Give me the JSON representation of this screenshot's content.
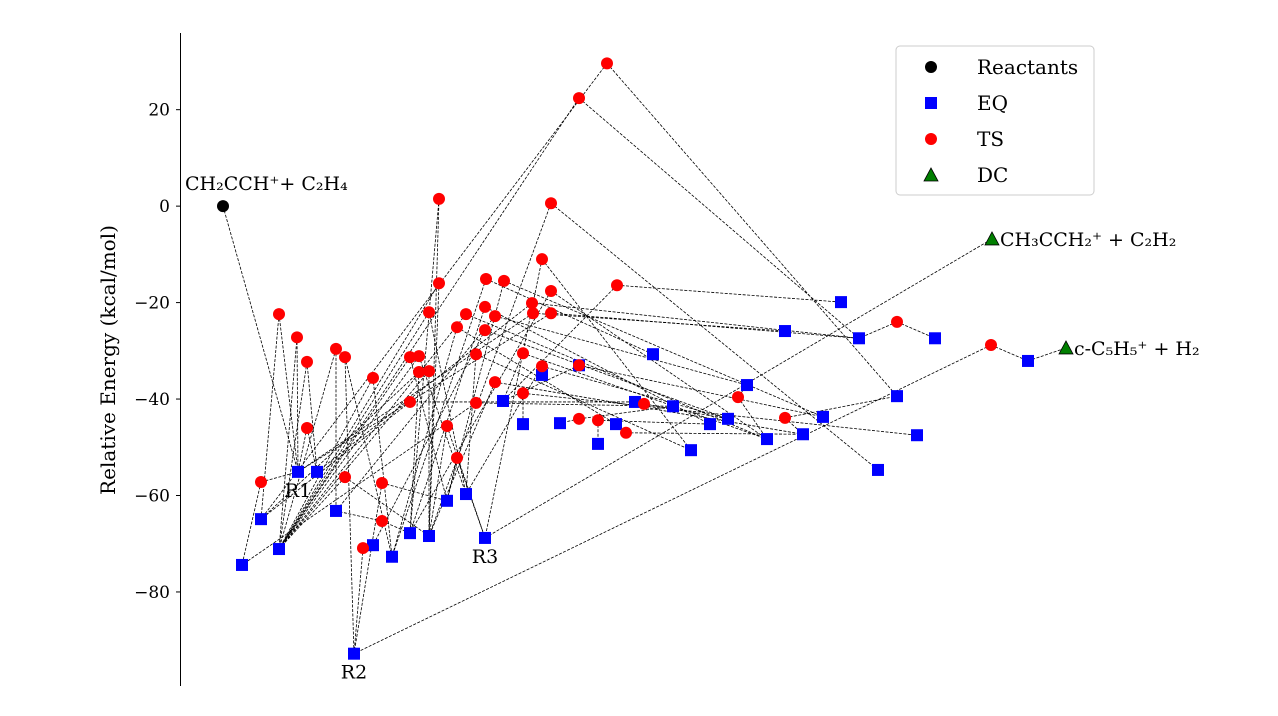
{
  "chart_data": {
    "type": "scatter",
    "title": "",
    "xlabel": "",
    "ylabel": "Relative Energy (kcal/mol)",
    "xlim": [
      0,
      109.8
    ],
    "ylim": [
      -99.5,
      35.9
    ],
    "x_axis_visible": false,
    "y_ticks": [
      20,
      0,
      -20,
      -40,
      -60,
      -80
    ],
    "y_tick_labels": [
      "20",
      "0",
      "−20",
      "−40",
      "−60",
      "−80"
    ],
    "grid": false,
    "legend": {
      "placement": "top-right",
      "entries": [
        {
          "name": "Reactants",
          "marker": "circle",
          "color": "#000000"
        },
        {
          "name": "EQ",
          "marker": "square",
          "color": "#0000ff"
        },
        {
          "name": "TS",
          "marker": "circle",
          "color": "#ff0000"
        },
        {
          "name": "DC",
          "marker": "triangle",
          "color": "#007f00"
        }
      ]
    },
    "series": [
      {
        "name": "Reactants",
        "points": [
          {
            "id": "R0",
            "x": 4.3,
            "y": 0.0,
            "label": "CH₂CCH⁺+ C₂H₄"
          }
        ]
      },
      {
        "name": "EQ",
        "points": [
          {
            "id": "E1",
            "x": 6.2,
            "y": -74.4
          },
          {
            "id": "E2",
            "x": 8.1,
            "y": -64.9
          },
          {
            "id": "E3",
            "x": 9.9,
            "y": -71.1
          },
          {
            "id": "E4",
            "x": 11.8,
            "y": -55.1,
            "label": "R1"
          },
          {
            "id": "E5",
            "x": 13.7,
            "y": -55.1
          },
          {
            "id": "E6",
            "x": 15.6,
            "y": -63.2
          },
          {
            "id": "E7",
            "x": 17.4,
            "y": -92.8,
            "label": "R2"
          },
          {
            "id": "E8",
            "x": 19.3,
            "y": -70.3
          },
          {
            "id": "E9",
            "x": 21.2,
            "y": -72.7
          },
          {
            "id": "E10",
            "x": 23.0,
            "y": -67.8
          },
          {
            "id": "E11",
            "x": 24.9,
            "y": -68.4
          },
          {
            "id": "E12",
            "x": 26.7,
            "y": -61.1
          },
          {
            "id": "E13",
            "x": 28.6,
            "y": -59.7
          },
          {
            "id": "E14",
            "x": 30.5,
            "y": -68.8,
            "label": "R3"
          },
          {
            "id": "E15",
            "x": 32.3,
            "y": -40.4
          },
          {
            "id": "E16",
            "x": 34.3,
            "y": -45.2
          },
          {
            "id": "E17",
            "x": 36.2,
            "y": -35.0
          },
          {
            "id": "E18",
            "x": 38.0,
            "y": -45.0
          },
          {
            "id": "E19",
            "x": 41.8,
            "y": -49.3
          },
          {
            "id": "E20",
            "x": 43.6,
            "y": -45.2
          },
          {
            "id": "E21",
            "x": 45.5,
            "y": -40.6
          },
          {
            "id": "E22",
            "x": 47.3,
            "y": -30.7
          },
          {
            "id": "E23",
            "x": 49.3,
            "y": -41.5
          },
          {
            "id": "E24",
            "x": 51.1,
            "y": -50.6
          },
          {
            "id": "E25",
            "x": 53.0,
            "y": -45.2
          },
          {
            "id": "E26",
            "x": 54.8,
            "y": -44.1
          },
          {
            "id": "E27",
            "x": 56.7,
            "y": -37.1
          },
          {
            "id": "E28",
            "x": 58.7,
            "y": -48.3
          },
          {
            "id": "E29",
            "x": 60.5,
            "y": -25.9
          },
          {
            "id": "E30",
            "x": 62.3,
            "y": -47.3
          },
          {
            "id": "E31",
            "x": 64.3,
            "y": -43.7
          },
          {
            "id": "E32",
            "x": 66.1,
            "y": -19.9
          },
          {
            "id": "E33",
            "x": 67.9,
            "y": -27.4
          },
          {
            "id": "E34",
            "x": 69.8,
            "y": -54.7
          },
          {
            "id": "E35",
            "x": 71.7,
            "y": -39.4
          },
          {
            "id": "E36",
            "x": 73.7,
            "y": -47.5
          },
          {
            "id": "E37",
            "x": 75.5,
            "y": -27.4
          },
          {
            "id": "E38",
            "x": 84.8,
            "y": -32.1
          },
          {
            "id": "E39",
            "x": 39.9,
            "y": -33.0
          }
        ]
      },
      {
        "name": "TS",
        "points": [
          {
            "id": "T1",
            "x": 8.1,
            "y": -57.2
          },
          {
            "id": "T2",
            "x": 9.9,
            "y": -22.4
          },
          {
            "id": "T3",
            "x": 11.7,
            "y": -27.2
          },
          {
            "id": "T4",
            "x": 12.7,
            "y": -32.3
          },
          {
            "id": "T5",
            "x": 12.7,
            "y": -46.0
          },
          {
            "id": "T6",
            "x": 15.6,
            "y": -29.6
          },
          {
            "id": "T7",
            "x": 16.5,
            "y": -31.3
          },
          {
            "id": "T8",
            "x": 19.3,
            "y": -35.6
          },
          {
            "id": "T9",
            "x": 16.5,
            "y": -56.2
          },
          {
            "id": "T10",
            "x": 18.3,
            "y": -70.9
          },
          {
            "id": "T11",
            "x": 20.2,
            "y": -57.4
          },
          {
            "id": "T12",
            "x": 20.2,
            "y": -65.3
          },
          {
            "id": "T13",
            "x": 23.0,
            "y": -31.3
          },
          {
            "id": "T14",
            "x": 23.9,
            "y": -31.1
          },
          {
            "id": "T15",
            "x": 23.9,
            "y": -34.4
          },
          {
            "id": "T16",
            "x": 24.9,
            "y": -34.2
          },
          {
            "id": "T17",
            "x": 24.9,
            "y": -22.0
          },
          {
            "id": "T18",
            "x": 25.9,
            "y": -16.0
          },
          {
            "id": "T19",
            "x": 25.9,
            "y": 1.5
          },
          {
            "id": "T20",
            "x": 23.0,
            "y": -40.6
          },
          {
            "id": "T21",
            "x": 26.7,
            "y": -45.6
          },
          {
            "id": "T22",
            "x": 27.7,
            "y": -25.1
          },
          {
            "id": "T23",
            "x": 27.7,
            "y": -52.2
          },
          {
            "id": "T24",
            "x": 28.6,
            "y": -22.4
          },
          {
            "id": "T25",
            "x": 29.6,
            "y": -30.7
          },
          {
            "id": "T26",
            "x": 29.6,
            "y": -40.8
          },
          {
            "id": "T27",
            "x": 30.5,
            "y": -20.9
          },
          {
            "id": "T28",
            "x": 30.5,
            "y": -25.7
          },
          {
            "id": "T29",
            "x": 30.6,
            "y": -15.1
          },
          {
            "id": "T30",
            "x": 31.5,
            "y": -22.8
          },
          {
            "id": "T31",
            "x": 31.5,
            "y": -36.5
          },
          {
            "id": "T32",
            "x": 32.4,
            "y": -15.5
          },
          {
            "id": "T33",
            "x": 34.3,
            "y": -30.5
          },
          {
            "id": "T34",
            "x": 34.3,
            "y": -38.8
          },
          {
            "id": "T35",
            "x": 35.2,
            "y": -20.1
          },
          {
            "id": "T36",
            "x": 35.3,
            "y": -22.2
          },
          {
            "id": "T37",
            "x": 36.2,
            "y": -11.0
          },
          {
            "id": "T38",
            "x": 36.2,
            "y": -33.2
          },
          {
            "id": "T39",
            "x": 37.1,
            "y": -17.6
          },
          {
            "id": "T40",
            "x": 37.1,
            "y": -22.2
          },
          {
            "id": "T41",
            "x": 37.1,
            "y": 0.6
          },
          {
            "id": "T42",
            "x": 39.9,
            "y": 22.4
          },
          {
            "id": "T43",
            "x": 42.7,
            "y": 29.6
          },
          {
            "id": "T44",
            "x": 43.7,
            "y": -16.4
          },
          {
            "id": "T45",
            "x": 39.9,
            "y": -44.1
          },
          {
            "id": "T46",
            "x": 41.8,
            "y": -44.4
          },
          {
            "id": "T47",
            "x": 44.6,
            "y": -47.0
          },
          {
            "id": "T48",
            "x": 46.4,
            "y": -41.0
          },
          {
            "id": "T49",
            "x": 39.9,
            "y": -33.0
          },
          {
            "id": "T50",
            "x": 55.8,
            "y": -39.6
          },
          {
            "id": "T51",
            "x": 60.5,
            "y": -43.9
          },
          {
            "id": "T52",
            "x": 71.7,
            "y": -24.0
          },
          {
            "id": "T53",
            "x": 81.1,
            "y": -28.8
          }
        ]
      },
      {
        "name": "DC",
        "points": [
          {
            "id": "D1",
            "x": 81.2,
            "y": -6.8,
            "label": "CH₃CCH₂⁺ + C₂H₂"
          },
          {
            "id": "D2",
            "x": 88.6,
            "y": -29.4,
            "label": "c-C₅H₅⁺ + H₂"
          }
        ]
      }
    ],
    "edges": [
      [
        "R0",
        "E4"
      ],
      [
        "T1",
        "E1"
      ],
      [
        "T1",
        "E4"
      ],
      [
        "T2",
        "E2"
      ],
      [
        "T2",
        "E4"
      ],
      [
        "T3",
        "E3"
      ],
      [
        "T3",
        "E4"
      ],
      [
        "T4",
        "E5"
      ],
      [
        "T4",
        "E3"
      ],
      [
        "T5",
        "E4"
      ],
      [
        "T5",
        "E5"
      ],
      [
        "T6",
        "E6"
      ],
      [
        "T6",
        "E3"
      ],
      [
        "T7",
        "E7"
      ],
      [
        "T7",
        "E9"
      ],
      [
        "T8",
        "E3"
      ],
      [
        "T8",
        "E9"
      ],
      [
        "T9",
        "E3"
      ],
      [
        "T9",
        "E11"
      ],
      [
        "T10",
        "E7"
      ],
      [
        "T10",
        "E8"
      ],
      [
        "T11",
        "E7"
      ],
      [
        "T11",
        "E12"
      ],
      [
        "T12",
        "E6"
      ],
      [
        "T12",
        "E10"
      ],
      [
        "T13",
        "E3"
      ],
      [
        "T13",
        "E12"
      ],
      [
        "T14",
        "E3"
      ],
      [
        "T14",
        "E13"
      ],
      [
        "T15",
        "E2"
      ],
      [
        "T15",
        "E10"
      ],
      [
        "T16",
        "E3"
      ],
      [
        "T16",
        "E11"
      ],
      [
        "T17",
        "E3"
      ],
      [
        "T17",
        "E13"
      ],
      [
        "T18",
        "E3"
      ],
      [
        "T18",
        "E11"
      ],
      [
        "T19",
        "E10"
      ],
      [
        "T19",
        "E11"
      ],
      [
        "T20",
        "E2"
      ],
      [
        "T20",
        "E21"
      ],
      [
        "T21",
        "E11"
      ],
      [
        "T21",
        "E14"
      ],
      [
        "T22",
        "E9"
      ],
      [
        "T22",
        "E20"
      ],
      [
        "T23",
        "E12"
      ],
      [
        "T23",
        "E14"
      ],
      [
        "T24",
        "E3"
      ],
      [
        "T24",
        "E28"
      ],
      [
        "T25",
        "E13"
      ],
      [
        "T25",
        "E24"
      ],
      [
        "T26",
        "E1"
      ],
      [
        "T26",
        "E23"
      ],
      [
        "T27",
        "E10"
      ],
      [
        "T27",
        "E25"
      ],
      [
        "T28",
        "E8"
      ],
      [
        "T28",
        "E26"
      ],
      [
        "T29",
        "E9"
      ],
      [
        "T29",
        "E22"
      ],
      [
        "T30",
        "E6"
      ],
      [
        "T30",
        "E27"
      ],
      [
        "T31",
        "E11"
      ],
      [
        "T31",
        "E30"
      ],
      [
        "T32",
        "E12"
      ],
      [
        "T32",
        "E31"
      ],
      [
        "T33",
        "E15"
      ],
      [
        "T33",
        "E28"
      ],
      [
        "T34",
        "E16"
      ],
      [
        "T34",
        "E36"
      ],
      [
        "T35",
        "E5"
      ],
      [
        "T35",
        "E33"
      ],
      [
        "T36",
        "E4"
      ],
      [
        "T36",
        "E29"
      ],
      [
        "T37",
        "E14"
      ],
      [
        "T37",
        "E24"
      ],
      [
        "T38",
        "E13"
      ],
      [
        "T38",
        "E26"
      ],
      [
        "T39",
        "E10"
      ],
      [
        "T39",
        "E28"
      ],
      [
        "T40",
        "E4"
      ],
      [
        "T40",
        "E33"
      ],
      [
        "T41",
        "E11"
      ],
      [
        "T41",
        "E34"
      ],
      [
        "T42",
        "E3"
      ],
      [
        "T42",
        "E33"
      ],
      [
        "T43",
        "E2"
      ],
      [
        "T43",
        "E35"
      ],
      [
        "T44",
        "E15"
      ],
      [
        "T44",
        "E32"
      ],
      [
        "T45",
        "E18"
      ],
      [
        "T45",
        "E23"
      ],
      [
        "T46",
        "E19"
      ],
      [
        "T46",
        "E25"
      ],
      [
        "T47",
        "E20"
      ],
      [
        "T47",
        "E30"
      ],
      [
        "T48",
        "E21"
      ],
      [
        "T48",
        "E26"
      ],
      [
        "T49",
        "E15"
      ],
      [
        "T49",
        "E31"
      ],
      [
        "T50",
        "E27"
      ],
      [
        "T50",
        "E28"
      ],
      [
        "T51",
        "E30"
      ],
      [
        "T51",
        "E35"
      ],
      [
        "T52",
        "E33"
      ],
      [
        "T52",
        "E37"
      ],
      [
        "T53",
        "E7"
      ],
      [
        "T53",
        "E38"
      ],
      [
        "E38",
        "D2"
      ],
      [
        "E14",
        "D1"
      ]
    ]
  }
}
